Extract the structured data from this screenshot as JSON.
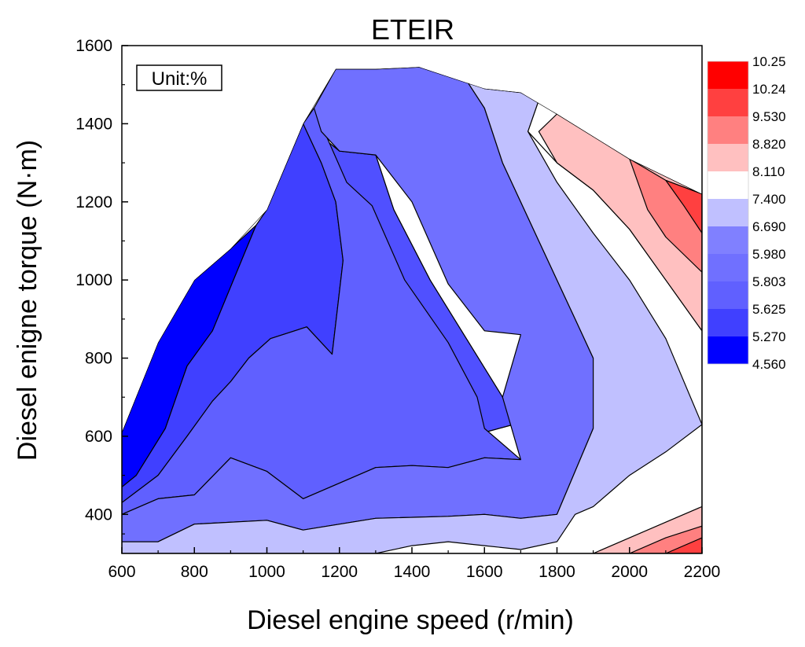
{
  "chart_data": {
    "type": "contour",
    "title": "ETEIR",
    "xlabel": "Diesel engine speed (r/min)",
    "ylabel": "Diesel enigne torque (N·m)",
    "unit_label": "Unit:%",
    "xlim": [
      600,
      2200
    ],
    "ylim": [
      300,
      1600
    ],
    "x_ticks": [
      600,
      800,
      1000,
      1200,
      1400,
      1600,
      1800,
      2000,
      2200
    ],
    "y_ticks": [
      400,
      600,
      800,
      1000,
      1200,
      1400,
      1600
    ],
    "legend": {
      "levels": [
        "10.25",
        "10.24",
        "9.530",
        "8.820",
        "8.110",
        "7.400",
        "6.690",
        "5.980",
        "5.803",
        "5.625",
        "5.270",
        "4.560"
      ],
      "colors": [
        "#ff0000",
        "#ff4040",
        "#ff8080",
        "#ffc0c0",
        "#ffffff",
        "#c0c0ff",
        "#8080ff",
        "#7070ff",
        "#6060ff",
        "#4040ff",
        "#0000ff"
      ]
    },
    "boundary": [
      [
        600,
        300
      ],
      [
        600,
        610
      ],
      [
        700,
        840
      ],
      [
        800,
        1000
      ],
      [
        900,
        1080
      ],
      [
        1000,
        1180
      ],
      [
        1100,
        1400
      ],
      [
        1190,
        1540
      ],
      [
        1300,
        1540
      ],
      [
        1420,
        1545
      ],
      [
        1600,
        1490
      ],
      [
        1700,
        1480
      ],
      [
        1800,
        1425
      ],
      [
        2000,
        1310
      ],
      [
        2200,
        1220
      ],
      [
        2200,
        300
      ]
    ],
    "regions": [
      {
        "level": "4.560-5.270",
        "color": "#0000ff",
        "polygon": [
          [
            600,
            300
          ],
          [
            600,
            610
          ],
          [
            700,
            840
          ],
          [
            800,
            1000
          ],
          [
            900,
            1080
          ],
          [
            970,
            1140
          ],
          [
            850,
            870
          ],
          [
            780,
            780
          ],
          [
            720,
            620
          ],
          [
            640,
            500
          ],
          [
            600,
            470
          ]
        ]
      },
      {
        "level": "5.270-5.625",
        "color": "#4040ff",
        "polygon": [
          [
            600,
            470
          ],
          [
            640,
            500
          ],
          [
            720,
            620
          ],
          [
            780,
            780
          ],
          [
            850,
            870
          ],
          [
            970,
            1140
          ],
          [
            1000,
            1180
          ],
          [
            1100,
            1400
          ],
          [
            1130,
            1440
          ],
          [
            1160,
            1360
          ],
          [
            1200,
            1330
          ],
          [
            1300,
            1320
          ],
          [
            1350,
            1180
          ],
          [
            1450,
            1000
          ],
          [
            1550,
            850
          ],
          [
            1650,
            700
          ],
          [
            1680,
            630
          ],
          [
            1600,
            610
          ],
          [
            1300,
            590
          ],
          [
            1100,
            570
          ],
          [
            900,
            600
          ],
          [
            800,
            560
          ],
          [
            700,
            500
          ],
          [
            600,
            430
          ]
        ]
      },
      {
        "level": "5.625-5.803",
        "color": "#5050ff",
        "polygon": [
          [
            1100,
            1400
          ],
          [
            1150,
            1300
          ],
          [
            1190,
            1200
          ],
          [
            1210,
            1050
          ],
          [
            1180,
            810
          ],
          [
            1110,
            880
          ],
          [
            1010,
            850
          ],
          [
            950,
            800
          ],
          [
            900,
            740
          ],
          [
            850,
            690
          ],
          [
            780,
            600
          ],
          [
            700,
            500
          ],
          [
            800,
            560
          ],
          [
            900,
            600
          ],
          [
            1100,
            570
          ],
          [
            1300,
            590
          ],
          [
            1600,
            610
          ],
          [
            1680,
            630
          ],
          [
            1650,
            700
          ],
          [
            1550,
            850
          ],
          [
            1450,
            1000
          ],
          [
            1350,
            1180
          ],
          [
            1300,
            1320
          ],
          [
            1200,
            1330
          ],
          [
            1160,
            1360
          ],
          [
            1130,
            1440
          ]
        ]
      },
      {
        "level": "5.803-5.980",
        "color": "#6060ff",
        "polygon": [
          [
            600,
            430
          ],
          [
            700,
            500
          ],
          [
            780,
            600
          ],
          [
            850,
            690
          ],
          [
            900,
            740
          ],
          [
            950,
            800
          ],
          [
            1010,
            850
          ],
          [
            1110,
            880
          ],
          [
            1180,
            810
          ],
          [
            1210,
            1050
          ],
          [
            1190,
            1200
          ],
          [
            1150,
            1300
          ],
          [
            1100,
            1400
          ],
          [
            1130,
            1440
          ],
          [
            1220,
            1250
          ],
          [
            1290,
            1190
          ],
          [
            1380,
            1000
          ],
          [
            1500,
            840
          ],
          [
            1580,
            700
          ],
          [
            1600,
            620
          ],
          [
            1700,
            540
          ],
          [
            1600,
            545
          ],
          [
            1500,
            520
          ],
          [
            1400,
            525
          ],
          [
            1300,
            520
          ],
          [
            1100,
            440
          ],
          [
            1000,
            510
          ],
          [
            900,
            545
          ],
          [
            800,
            450
          ],
          [
            700,
            440
          ],
          [
            600,
            400
          ]
        ]
      },
      {
        "level": "5.980-6.690",
        "color": "#7070ff",
        "polygon": [
          [
            600,
            400
          ],
          [
            700,
            440
          ],
          [
            800,
            450
          ],
          [
            900,
            545
          ],
          [
            1000,
            510
          ],
          [
            1100,
            440
          ],
          [
            1300,
            520
          ],
          [
            1400,
            525
          ],
          [
            1500,
            520
          ],
          [
            1600,
            545
          ],
          [
            1700,
            540
          ],
          [
            1650,
            700
          ],
          [
            1700,
            860
          ],
          [
            1600,
            870
          ],
          [
            1500,
            990
          ],
          [
            1400,
            1200
          ],
          [
            1300,
            1320
          ],
          [
            1200,
            1330
          ],
          [
            1150,
            1380
          ],
          [
            1130,
            1440
          ],
          [
            1190,
            1540
          ],
          [
            1300,
            1540
          ],
          [
            1420,
            1545
          ],
          [
            1530,
            1540
          ],
          [
            1600,
            1440
          ],
          [
            1650,
            1300
          ],
          [
            1750,
            1100
          ],
          [
            1850,
            900
          ],
          [
            1900,
            800
          ],
          [
            1900,
            620
          ],
          [
            1800,
            400
          ],
          [
            1700,
            390
          ],
          [
            1600,
            400
          ],
          [
            1500,
            395
          ],
          [
            1300,
            390
          ],
          [
            1100,
            360
          ],
          [
            1000,
            385
          ],
          [
            800,
            375
          ],
          [
            700,
            330
          ],
          [
            600,
            330
          ]
        ]
      },
      {
        "level": "6.690-7.400",
        "color": "#c0c0ff",
        "polygon": [
          [
            600,
            300
          ],
          [
            600,
            330
          ],
          [
            700,
            330
          ],
          [
            800,
            375
          ],
          [
            1000,
            385
          ],
          [
            1100,
            360
          ],
          [
            1300,
            390
          ],
          [
            1500,
            395
          ],
          [
            1600,
            400
          ],
          [
            1700,
            390
          ],
          [
            1800,
            400
          ],
          [
            1900,
            620
          ],
          [
            1900,
            800
          ],
          [
            1850,
            900
          ],
          [
            1750,
            1100
          ],
          [
            1650,
            1300
          ],
          [
            1600,
            1440
          ],
          [
            1530,
            1540
          ],
          [
            1600,
            1490
          ],
          [
            1700,
            1480
          ],
          [
            1750,
            1460
          ],
          [
            1720,
            1380
          ],
          [
            1800,
            1250
          ],
          [
            1900,
            1120
          ],
          [
            2000,
            1000
          ],
          [
            2100,
            850
          ],
          [
            2200,
            630
          ],
          [
            2100,
            560
          ],
          [
            2000,
            500
          ],
          [
            1950,
            460
          ],
          [
            1900,
            420
          ],
          [
            1850,
            400
          ],
          [
            1800,
            330
          ],
          [
            1700,
            310
          ],
          [
            1600,
            320
          ],
          [
            1500,
            330
          ],
          [
            1400,
            320
          ],
          [
            1300,
            300
          ]
        ]
      },
      {
        "level": "7.400-8.110",
        "color": "#ffffff",
        "polygon": [
          [
            1750,
            1460
          ],
          [
            1800,
            1425
          ],
          [
            1900,
            1380
          ],
          [
            2000,
            1310
          ],
          [
            2100,
            1240
          ],
          [
            2200,
            1220
          ],
          [
            2200,
            870
          ],
          [
            2100,
            1000
          ],
          [
            2000,
            1130
          ],
          [
            1900,
            1230
          ],
          [
            1800,
            1300
          ],
          [
            1720,
            1380
          ]
        ]
      },
      {
        "level": "8.110-8.820 upper",
        "color": "#ffc0c0",
        "polygon": [
          [
            1800,
            1425
          ],
          [
            2000,
            1310
          ],
          [
            2200,
            1220
          ],
          [
            2200,
            870
          ],
          [
            2100,
            1000
          ],
          [
            2000,
            1130
          ],
          [
            1900,
            1230
          ],
          [
            1800,
            1300
          ],
          [
            1750,
            1380
          ]
        ]
      },
      {
        "level": "8.820-9.530 upper",
        "color": "#ff8080",
        "polygon": [
          [
            2000,
            1310
          ],
          [
            2100,
            1255
          ],
          [
            2200,
            1220
          ],
          [
            2200,
            1020
          ],
          [
            2100,
            1110
          ],
          [
            2050,
            1180
          ]
        ]
      },
      {
        "level": "9.530-10.24 upper",
        "color": "#ff4040",
        "polygon": [
          [
            2100,
            1255
          ],
          [
            2200,
            1220
          ],
          [
            2200,
            1120
          ],
          [
            2150,
            1190
          ]
        ]
      },
      {
        "level": "8.110-8.820 lower",
        "color": "#ffc0c0",
        "polygon": [
          [
            1900,
            300
          ],
          [
            2000,
            340
          ],
          [
            2100,
            380
          ],
          [
            2200,
            420
          ],
          [
            2200,
            300
          ]
        ]
      },
      {
        "level": "8.820-9.530 lower",
        "color": "#ff8080",
        "polygon": [
          [
            2000,
            300
          ],
          [
            2100,
            340
          ],
          [
            2200,
            370
          ],
          [
            2200,
            300
          ]
        ]
      },
      {
        "level": "9.530-10.24 lower",
        "color": "#ff4040",
        "polygon": [
          [
            2100,
            300
          ],
          [
            2200,
            340
          ],
          [
            2200,
            300
          ]
        ]
      }
    ]
  }
}
